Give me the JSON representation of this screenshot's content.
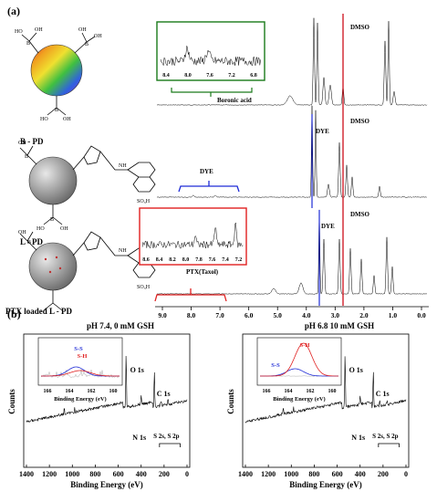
{
  "panel_a": {
    "label": "(a)",
    "structures": [
      {
        "name": "B - PD"
      },
      {
        "name": "L - PD"
      },
      {
        "name": "PTX loaded L - PD"
      }
    ],
    "atoms": {
      "B": "B",
      "OH": "OH",
      "HO": "HO",
      "SO3H": "SO₃H",
      "HN": "HN",
      "NH": "NH"
    },
    "spectra": {
      "dmso_label": "DMSO",
      "dye_label": "DYE",
      "boronic_label": "Boronic acid",
      "ptx_label": "PTX(Taxol)",
      "boronic_inset_ticks": [
        "8.4",
        "8.0",
        "7.6",
        "7.2",
        "6.8"
      ],
      "ptx_inset_ticks": [
        "8.6",
        "8.4",
        "8.2",
        "8.0",
        "7.8",
        "7.6",
        "7.4",
        "7.2"
      ],
      "ppm_ticks": [
        "9.0",
        "8.0",
        "7.0",
        "6.0",
        "5.0",
        "4.0",
        "3.0",
        "2.0",
        "1.0",
        "0.0"
      ]
    },
    "colors": {
      "dmso": "#d0202a",
      "dye": "#1f2bd6",
      "boronic_box": "#1a7a1a",
      "ptx_box": "#e02020"
    }
  },
  "panel_b": {
    "label": "(b)",
    "charts": [
      {
        "title": "pH 7.4, 0 mM GSH",
        "ylabel": "Counts",
        "xlabel": "Binding Energy (eV)",
        "x_ticks": [
          "1400",
          "1200",
          "1000",
          "800",
          "600",
          "400",
          "200",
          "0"
        ],
        "peaks": {
          "o1s": "O 1s",
          "c1s": "C 1s",
          "n1s": "N 1s",
          "s": "S 2s, S 2p"
        },
        "inset": {
          "xlabel": "Binding Energy (eV)",
          "ticks": [
            "166",
            "164",
            "162",
            "160"
          ],
          "ss": "S-S",
          "sh": "S-H"
        }
      },
      {
        "title": "pH 6.8 10 mM GSH",
        "ylabel": "Counts",
        "xlabel": "Binding Energy (eV)",
        "x_ticks": [
          "1400",
          "1200",
          "1000",
          "800",
          "600",
          "400",
          "200",
          "0"
        ],
        "peaks": {
          "o1s": "O 1s",
          "c1s": "C 1s",
          "n1s": "N 1s",
          "s": "S 2s, S 2p"
        },
        "inset": {
          "xlabel": "Binding Energy (eV)",
          "ticks": [
            "166",
            "164",
            "162",
            "160"
          ],
          "ss": "S-S",
          "sh": "S-H"
        }
      }
    ]
  }
}
